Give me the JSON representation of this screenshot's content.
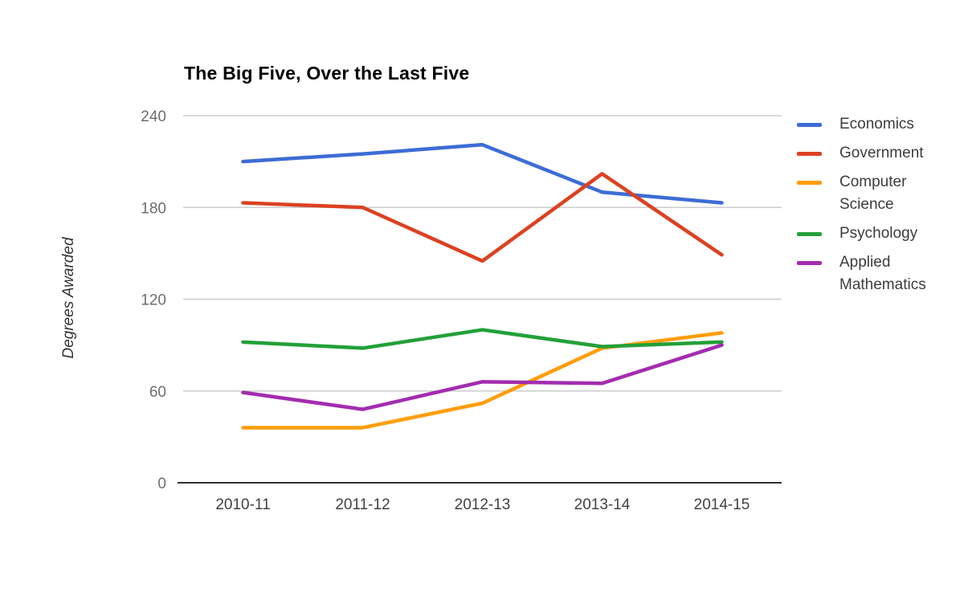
{
  "chart_data": {
    "type": "line",
    "title": "The Big Five, Over the Last Five",
    "xlabel": "",
    "ylabel": "Degrees Awarded",
    "categories": [
      "2010-11",
      "2011-12",
      "2012-13",
      "2013-14",
      "2014-15"
    ],
    "series": [
      {
        "name": "Economics",
        "color": "#3D6CD5",
        "values": [
          210,
          215,
          221,
          190,
          183
        ]
      },
      {
        "name": "Government",
        "color": "#DC4121",
        "values": [
          183,
          180,
          145,
          202,
          149
        ]
      },
      {
        "name": "Computer Science",
        "color": "#FF9D0A",
        "values": [
          36,
          36,
          52,
          88,
          98
        ]
      },
      {
        "name": "Psychology",
        "color": "#23A038",
        "values": [
          92,
          88,
          100,
          89,
          92
        ]
      },
      {
        "name": "Applied Mathematics",
        "color": "#A32CB0",
        "values": [
          59,
          48,
          66,
          65,
          90
        ]
      }
    ],
    "yticks": [
      0,
      60,
      120,
      180,
      240
    ],
    "ylim": [
      0,
      240
    ],
    "grid": true,
    "legend_position": "right",
    "colors": {
      "background": "#ffffff",
      "gridline": "#cccccc",
      "axis_line": "#333333",
      "ytick_text": "#6e6e6e",
      "xtick_text": "#424242",
      "title_text": "#000000",
      "legend_text": "#3c3c3c",
      "axis_title_text": "#333333"
    }
  }
}
